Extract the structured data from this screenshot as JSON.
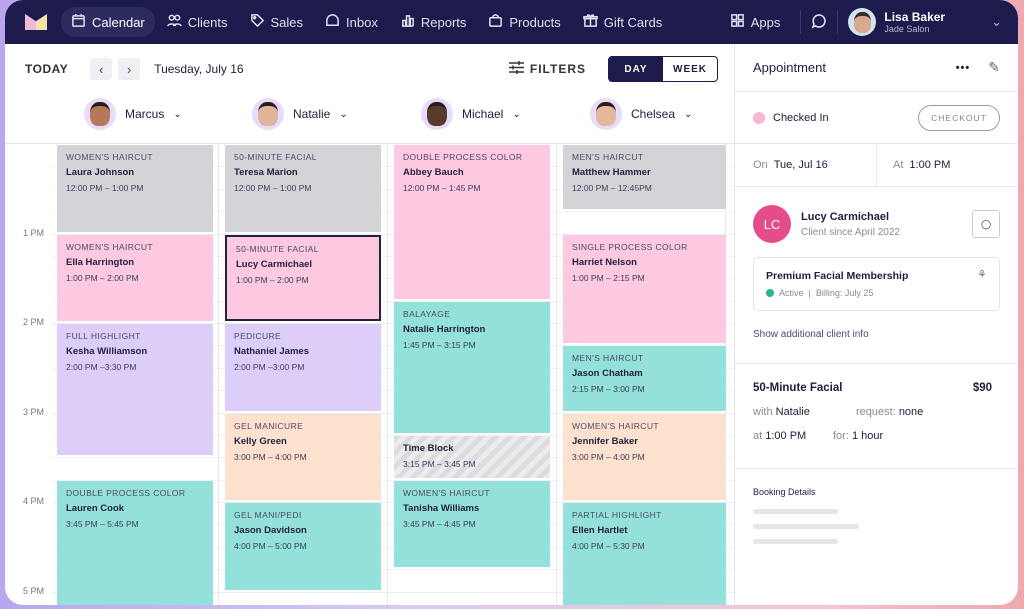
{
  "nav": {
    "items": [
      {
        "label": "Calendar",
        "icon": "calendar-icon",
        "active": true
      },
      {
        "label": "Clients",
        "icon": "clients-icon"
      },
      {
        "label": "Sales",
        "icon": "tag-icon"
      },
      {
        "label": "Inbox",
        "icon": "inbox-icon"
      },
      {
        "label": "Reports",
        "icon": "bar-chart-icon"
      },
      {
        "label": "Products",
        "icon": "bag-icon"
      },
      {
        "label": "Gift Cards",
        "icon": "gift-icon"
      }
    ],
    "apps": "Apps",
    "user": {
      "name": "Lisa Baker",
      "salon": "Jade Salon"
    }
  },
  "toolbar": {
    "today": "TODAY",
    "date": "Tuesday, July 16",
    "filters": "FILTERS",
    "day": "DAY",
    "week": "WEEK",
    "view": "DAY"
  },
  "hours": [
    "1 PM",
    "2 PM",
    "3 PM",
    "4 PM",
    "5 PM"
  ],
  "colors": {
    "gray": "#d4d4d8",
    "pink": "#fcc9e1",
    "purple": "#dccef8",
    "teal": "#93e1da",
    "peach": "#fde1cf",
    "navy": "#1c1b4b"
  },
  "staff": [
    {
      "name": "Marcus",
      "appointments": [
        {
          "category": "Women's Haircut",
          "client": "Laura Johnson",
          "time": "12:00 PM – 1:00 PM",
          "color": "gray"
        },
        {
          "category": "Women's Haircut",
          "client": "Ella Harrington",
          "time": "1:00 PM – 2:00 PM",
          "color": "pink"
        },
        {
          "category": "Full Highlight",
          "client": "Kesha Williamson",
          "time": "2:00 PM –3:30 PM",
          "color": "purple"
        },
        {
          "category": "Double Process Color",
          "client": "Lauren Cook",
          "time": "3:45 PM – 5:45 PM",
          "color": "teal"
        }
      ]
    },
    {
      "name": "Natalie",
      "appointments": [
        {
          "category": "50-Minute Facial",
          "client": "Teresa Marion",
          "time": "12:00 PM – 1:00 PM",
          "color": "gray"
        },
        {
          "category": "50-Minute Facial",
          "client": "Lucy Carmichael",
          "time": "1:00 PM – 2:00 PM",
          "color": "pink",
          "selected": true
        },
        {
          "category": "Pedicure",
          "client": "Nathaniel James",
          "time": "2:00 PM –3:00 PM",
          "color": "purple"
        },
        {
          "category": "Gel Manicure",
          "client": "Kelly Green",
          "time": "3:00 PM – 4:00 PM",
          "color": "peach"
        },
        {
          "category": "Gel Mani/Pedi",
          "client": "Jason Davidson",
          "time": "4:00 PM – 5:00 PM",
          "color": "teal"
        }
      ]
    },
    {
      "name": "Michael",
      "appointments": [
        {
          "category": "Double Process Color",
          "client": "Abbey Bauch",
          "time": "12:00 PM – 1:45 PM",
          "color": "pink"
        },
        {
          "category": "Balayage",
          "client": "Natalie Harrington",
          "time": "1:45 PM – 3:15 PM",
          "color": "teal"
        },
        {
          "category": "",
          "client": "Time Block",
          "time": "3:15 PM – 3:45 PM",
          "color": "stripe"
        },
        {
          "category": "Women's Haircut",
          "client": "Tanisha Williams",
          "time": "3:45 PM – 4:45 PM",
          "color": "teal"
        }
      ]
    },
    {
      "name": "Chelsea",
      "appointments": [
        {
          "category": "Men's Haircut",
          "client": "Matthew Hammer",
          "time": "12:00 PM – 12:45PM",
          "color": "gray"
        },
        {
          "category": "Single Process Color",
          "client": "Harriet Nelson",
          "time": "1:00 PM – 2:15 PM",
          "color": "pink"
        },
        {
          "category": "Men's Haircut",
          "client": "Jason Chatham",
          "time": "2:15 PM – 3:00 PM",
          "color": "teal"
        },
        {
          "category": "Women's Haircut",
          "client": "Jennifer Baker",
          "time": "3:00 PM – 4:00 PM",
          "color": "peach"
        },
        {
          "category": "Partial Highlight",
          "client": "Ellen Hartlet",
          "time": "4:00 PM – 5:30 PM",
          "color": "teal"
        }
      ]
    }
  ],
  "panel": {
    "title": "Appointment",
    "status": "Checked In",
    "status_color": "#f7b6d4",
    "checkout": "CHECKOUT",
    "on_label": "On",
    "on_value": "Tue, Jul 16",
    "at_label": "At",
    "at_value": "1:00 PM",
    "client": {
      "initials": "LC",
      "name": "Lucy Carmichael",
      "since": "Client since April 2022",
      "avatar_color": "#e44d8a"
    },
    "membership": {
      "name": "Premium Facial Membership",
      "status": "Active",
      "billing": "Billing: July 25",
      "status_color": "#2bb58a"
    },
    "show_more": "Show additional client info",
    "service": {
      "name": "50-Minute Facial",
      "price": "$90",
      "with_label": "with",
      "with": "Natalie",
      "request_label": "request:",
      "request": "none",
      "at_label": "at",
      "at": "1:00 PM",
      "for_label": "for:",
      "for": "1 hour"
    },
    "booking": "Booking Details"
  }
}
